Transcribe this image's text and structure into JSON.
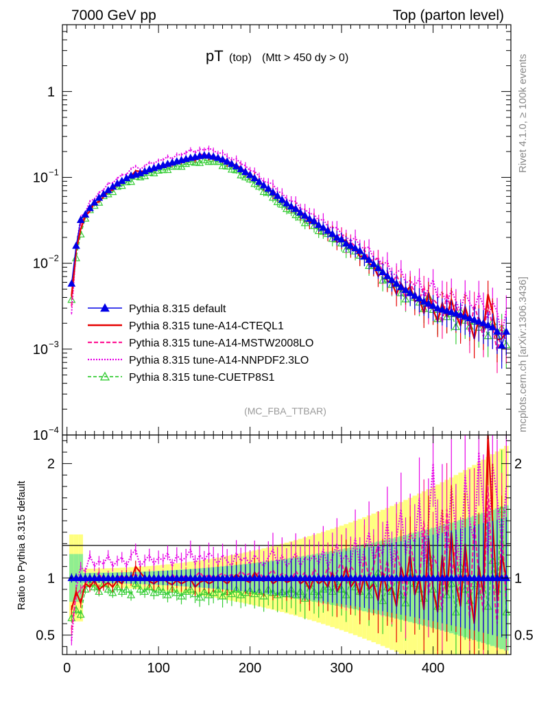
{
  "header": {
    "left": "7000 GeV pp",
    "right": "Top (parton level)"
  },
  "side": {
    "rivet": "Rivet 4.1.0, ≥ 100k events",
    "mcplots": "mcplots.cern.ch [arXiv:1306.3436]"
  },
  "plot": {
    "title_main": "pT",
    "title_sub": " (top) ",
    "title_cut": "(Mtt > 450 dy > 0)",
    "analysis": "(MC_FBA_TTBAR)",
    "ratio_ylabel": "Ratio to Pythia 8.315 default"
  },
  "colors": {
    "default": "#0000e6",
    "cteql1": "#e60000",
    "mstw": "#ff1493",
    "nnpdf": "#e600e6",
    "cuetp8": "#33cc33",
    "band_yellow": "#ffff80",
    "band_green": "#90ee90"
  },
  "chart_data": {
    "type": "line",
    "xlim": [
      -5,
      485
    ],
    "main": {
      "yscale": "log",
      "ylim": [
        0.0001,
        6
      ],
      "yticks": [
        {
          "value": 1,
          "label": "1"
        },
        {
          "value": 0.1,
          "label": "10",
          "exp": "−1"
        },
        {
          "value": 0.01,
          "label": "10",
          "exp": "−2"
        },
        {
          "value": 0.001,
          "label": "10",
          "exp": "−3"
        },
        {
          "value": 0.0001,
          "label": "10",
          "exp": "−4"
        }
      ]
    },
    "ratio": {
      "ylim": [
        0.33,
        2.25
      ],
      "yticks": [
        {
          "value": 0.5,
          "label": "0.5"
        },
        {
          "value": 1,
          "label": "1"
        },
        {
          "value": 2,
          "label": "2"
        }
      ]
    },
    "xticks": [
      {
        "value": 0,
        "label": "0"
      },
      {
        "value": 100,
        "label": "100"
      },
      {
        "value": 200,
        "label": "200"
      },
      {
        "value": 300,
        "label": "300"
      },
      {
        "value": 400,
        "label": "400"
      }
    ],
    "x": [
      5,
      10,
      15,
      20,
      25,
      30,
      35,
      40,
      45,
      50,
      55,
      60,
      65,
      70,
      75,
      80,
      85,
      90,
      95,
      100,
      105,
      110,
      115,
      120,
      125,
      130,
      135,
      140,
      145,
      150,
      155,
      160,
      165,
      170,
      175,
      180,
      185,
      190,
      195,
      200,
      205,
      210,
      215,
      220,
      225,
      230,
      235,
      240,
      245,
      250,
      255,
      260,
      265,
      270,
      275,
      280,
      285,
      290,
      295,
      300,
      305,
      310,
      315,
      320,
      325,
      330,
      335,
      340,
      345,
      350,
      355,
      360,
      365,
      370,
      375,
      380,
      385,
      390,
      395,
      400,
      405,
      410,
      415,
      420,
      425,
      430,
      435,
      440,
      445,
      450,
      455,
      460,
      465,
      470,
      475,
      480
    ],
    "default_values": [
      0.0058,
      0.016,
      0.032,
      0.037,
      0.044,
      0.051,
      0.058,
      0.064,
      0.071,
      0.078,
      0.085,
      0.091,
      0.098,
      0.105,
      0.108,
      0.112,
      0.118,
      0.124,
      0.129,
      0.134,
      0.139,
      0.144,
      0.149,
      0.154,
      0.159,
      0.164,
      0.169,
      0.173,
      0.178,
      0.181,
      0.179,
      0.175,
      0.169,
      0.162,
      0.153,
      0.144,
      0.135,
      0.125,
      0.116,
      0.107,
      0.098,
      0.089,
      0.081,
      0.074,
      0.067,
      0.061,
      0.055,
      0.05,
      0.046,
      0.043,
      0.039,
      0.036,
      0.033,
      0.031,
      0.028,
      0.026,
      0.024,
      0.022,
      0.02,
      0.019,
      0.017,
      0.016,
      0.015,
      0.014,
      0.012,
      0.011,
      0.0098,
      0.0088,
      0.0079,
      0.0071,
      0.0064,
      0.0058,
      0.0053,
      0.0049,
      0.0045,
      0.0042,
      0.0039,
      0.0036,
      0.0034,
      0.0032,
      0.003,
      0.0029,
      0.0028,
      0.0027,
      0.0026,
      0.0025,
      0.0024,
      0.0023,
      0.0022,
      0.0021,
      0.002,
      0.0019,
      0.0018,
      0.0016,
      0.0011,
      0.0016
    ],
    "series": [
      {
        "name": "Pythia 8.315 default",
        "key": "default",
        "ratio": [
          1,
          1,
          1,
          1,
          1,
          1,
          1,
          1,
          1,
          1,
          1,
          1,
          1,
          1,
          1,
          1,
          1,
          1,
          1,
          1,
          1,
          1,
          1,
          1,
          1,
          1,
          1,
          1,
          1,
          1,
          1,
          1,
          1,
          1,
          1,
          1,
          1,
          1,
          1,
          1,
          1,
          1,
          1,
          1,
          1,
          1,
          1,
          1,
          1,
          1,
          1,
          1,
          1,
          1,
          1,
          1,
          1,
          1,
          1,
          1,
          1,
          1,
          1,
          1,
          1,
          1,
          1,
          1,
          1,
          1,
          1,
          1,
          1,
          1,
          1,
          1,
          1,
          1,
          1,
          1,
          1,
          1,
          1,
          1,
          1,
          1,
          1,
          1,
          1,
          1,
          1,
          1,
          1,
          1,
          1,
          1
        ]
      },
      {
        "name": "Pythia 8.315 tune-A14-CTEQL1",
        "key": "cteql1",
        "ratio": [
          0.72,
          0.88,
          0.78,
          0.95,
          0.92,
          0.98,
          0.9,
          0.93,
          0.96,
          0.92,
          0.98,
          0.95,
          1.02,
          0.98,
          1.1,
          1.05,
          1.0,
          0.97,
          0.95,
          0.98,
          1.0,
          0.96,
          0.94,
          0.98,
          0.95,
          0.97,
          0.99,
          0.92,
          0.96,
          0.98,
          0.95,
          0.97,
          1.02,
          0.98,
          0.95,
          0.99,
          1.03,
          1.0,
          0.98,
          0.96,
          1.05,
          0.99,
          0.97,
          1.01,
          0.95,
          0.98,
          1.0,
          0.96,
          0.98,
          1.02,
          0.95,
          0.98,
          0.9,
          1.0,
          0.95,
          0.98,
          0.92,
          1.05,
          0.88,
          0.96,
          1.1,
          0.92,
          0.98,
          0.85,
          1.02,
          0.9,
          0.95,
          0.8,
          1.05,
          0.88,
          0.92,
          0.75,
          1.1,
          0.95,
          1.2,
          0.85,
          1.0,
          0.72,
          1.35,
          0.9,
          0.7,
          1.2,
          0.85,
          1.4,
          0.95,
          0.75,
          1.3,
          0.9,
          0.6,
          1.1,
          0.85,
          2.3,
          1.5,
          0.8,
          1.2,
          1.0
        ]
      },
      {
        "name": "Pythia 8.315 tune-A14-MSTW2008LO",
        "key": "mstw",
        "ratio": [
          0.55,
          0.85,
          0.9,
          0.95,
          1.0,
          0.98,
          1.05,
          0.95,
          1.02,
          0.98,
          1.0,
          1.02,
          0.99,
          1.01,
          1.03,
          1.0,
          0.98,
          1.02,
          0.97,
          1.0,
          1.01,
          0.98,
          1.03,
          0.99,
          1.0,
          1.02,
          0.98,
          1.01,
          1.05,
          1.0,
          1.03,
          0.99,
          1.02,
          1.04,
          1.01,
          1.03,
          1.0,
          1.06,
          1.02,
          1.04,
          1.01,
          1.05,
          0.99,
          1.03,
          1.07,
          1.0,
          1.04,
          1.02,
          0.98,
          1.06,
          1.0,
          1.05,
          0.95,
          1.08,
          1.02,
          0.97,
          1.1,
          1.0,
          1.05,
          1.15,
          0.95,
          1.1,
          1.05,
          0.92,
          1.2,
          1.0,
          1.1,
          1.3,
          0.95,
          1.15,
          0.9,
          1.25,
          1.05,
          0.8,
          1.3,
          1.1,
          0.95,
          1.5,
          0.85,
          1.2,
          1.1,
          0.7,
          1.6,
          1.0,
          1.3,
          0.8,
          1.2,
          0.65,
          1.5,
          1.0,
          0.7,
          1.8,
          1.0,
          0.6,
          1.4,
          0.8
        ]
      },
      {
        "name": "Pythia 8.315 tune-A14-NNPDF2.3LO",
        "key": "nnpdf",
        "ratio": [
          0.45,
          0.9,
          1.1,
          1.05,
          1.2,
          1.1,
          1.15,
          1.12,
          1.2,
          1.1,
          1.15,
          1.18,
          1.1,
          1.2,
          1.25,
          1.1,
          1.15,
          1.2,
          1.12,
          1.18,
          1.15,
          1.22,
          1.1,
          1.2,
          1.15,
          1.18,
          1.25,
          1.12,
          1.2,
          1.15,
          1.22,
          1.18,
          1.12,
          1.2,
          1.15,
          1.1,
          1.22,
          1.15,
          1.18,
          1.12,
          1.2,
          1.15,
          1.1,
          1.18,
          1.25,
          1.12,
          1.2,
          1.1,
          1.15,
          1.22,
          1.1,
          1.18,
          1.15,
          1.2,
          1.12,
          1.25,
          1.1,
          1.18,
          1.3,
          1.15,
          1.2,
          1.12,
          1.35,
          1.1,
          1.25,
          1.4,
          1.15,
          1.3,
          1.2,
          1.5,
          1.1,
          1.35,
          1.6,
          1.2,
          1.4,
          1.3,
          1.7,
          1.1,
          1.5,
          2.0,
          1.3,
          1.6,
          1.2,
          1.8,
          1.4,
          1.1,
          1.9,
          1.5,
          1.3,
          2.1,
          1.6,
          1.2,
          2.0,
          1.7,
          1.3,
          1.8
        ]
      },
      {
        "name": "Pythia 8.315 tune-CUETP8S1",
        "key": "cuetp8",
        "ratio": [
          0.65,
          0.72,
          0.68,
          0.9,
          0.95,
          0.92,
          0.88,
          0.95,
          0.9,
          0.87,
          0.92,
          0.88,
          0.9,
          0.85,
          0.95,
          0.9,
          0.88,
          0.92,
          0.87,
          0.9,
          0.88,
          0.85,
          0.9,
          0.87,
          0.84,
          0.88,
          0.9,
          0.86,
          0.83,
          0.88,
          0.85,
          0.87,
          0.9,
          0.84,
          0.88,
          0.86,
          0.9,
          0.85,
          0.87,
          0.89,
          0.86,
          0.88,
          0.84,
          0.9,
          0.87,
          0.85,
          0.88,
          0.86,
          0.9,
          0.85,
          0.88,
          0.82,
          0.95,
          0.88,
          0.85,
          0.9,
          0.92,
          0.88,
          0.95,
          0.9,
          0.85,
          0.98,
          0.92,
          0.88,
          1.0,
          0.85,
          0.95,
          1.05,
          0.8,
          0.92,
          0.88,
          1.0,
          0.85,
          0.78,
          1.05,
          0.95,
          0.9,
          0.82,
          1.2,
          0.9,
          0.75,
          1.0,
          0.85,
          0.95,
          0.7,
          1.1,
          0.9,
          0.8,
          0.95,
          0.85,
          1.0,
          0.75,
          1.15,
          0.9,
          1.6,
          0.7
        ]
      }
    ]
  }
}
